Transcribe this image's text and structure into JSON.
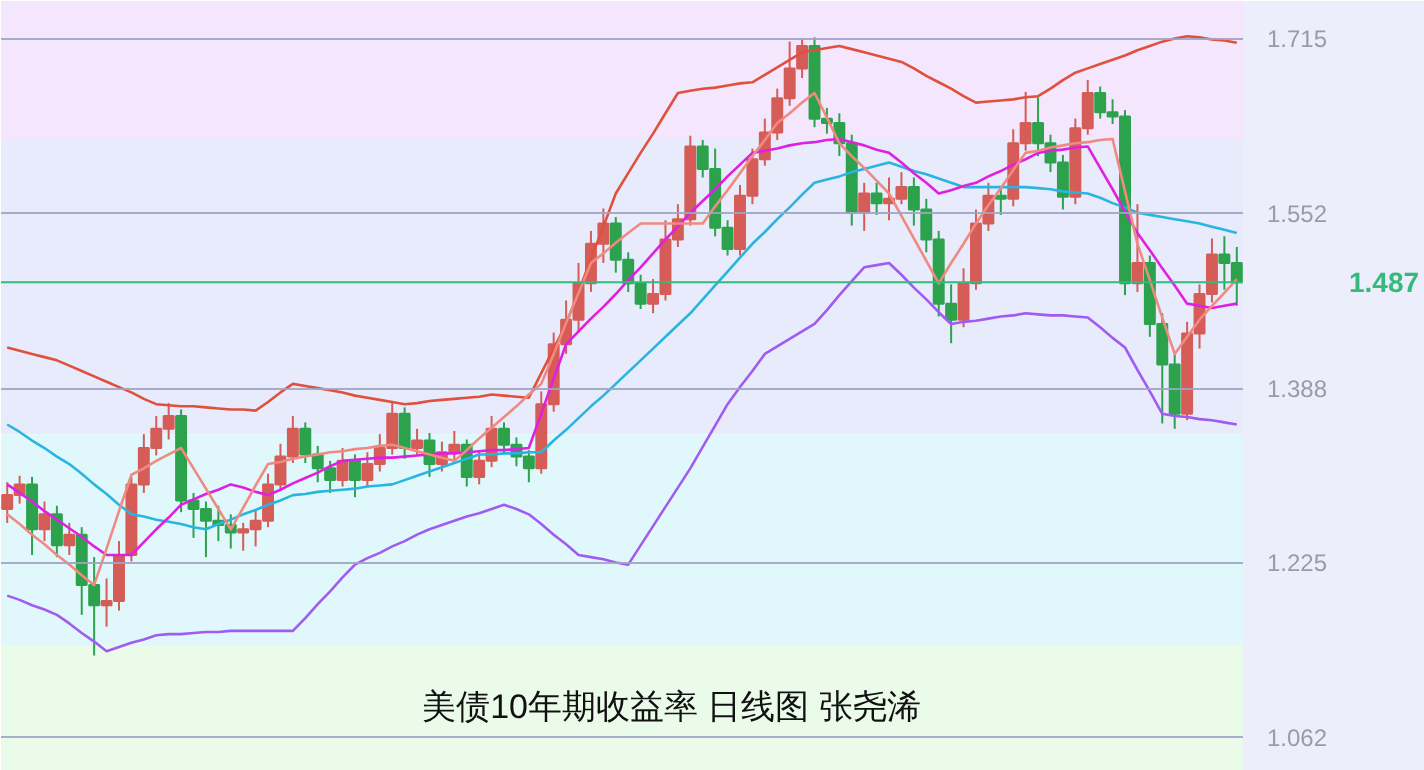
{
  "chart_data": {
    "type": "candlestick",
    "title": "美债10年期收益率  日线图  张尧浠",
    "categories": [
      null,
      null,
      null,
      null,
      null,
      null,
      null,
      null,
      null,
      null,
      null,
      null,
      null,
      null,
      null,
      null,
      null,
      null,
      null,
      null,
      null,
      null,
      null,
      null,
      null,
      null,
      null,
      null,
      null,
      null,
      null,
      null,
      null,
      null,
      null,
      null,
      null,
      null,
      null,
      null,
      null,
      null,
      null,
      null,
      null,
      null,
      null,
      null,
      null,
      null,
      null,
      null,
      null,
      null,
      null,
      null,
      null,
      null,
      null,
      null,
      null,
      null,
      null,
      null,
      null,
      null,
      null,
      null,
      null,
      null,
      null,
      null,
      null,
      null,
      null,
      null,
      null,
      null,
      null,
      null,
      null,
      null,
      null,
      null,
      null,
      null,
      null,
      null,
      null,
      null,
      null,
      null,
      null,
      null,
      null,
      null,
      null,
      null,
      null,
      null
    ],
    "ohlc": [
      [
        1.275,
        1.3,
        1.262,
        1.288
      ],
      [
        1.288,
        1.306,
        1.28,
        1.298
      ],
      [
        1.298,
        1.305,
        1.232,
        1.256
      ],
      [
        1.256,
        1.282,
        1.245,
        1.27
      ],
      [
        1.27,
        1.278,
        1.23,
        1.241
      ],
      [
        1.241,
        1.262,
        1.232,
        1.251
      ],
      [
        1.251,
        1.258,
        1.176,
        1.204
      ],
      [
        1.204,
        1.23,
        1.138,
        1.185
      ],
      [
        1.185,
        1.21,
        1.165,
        1.189
      ],
      [
        1.189,
        1.245,
        1.18,
        1.232
      ],
      [
        1.232,
        1.305,
        1.226,
        1.298
      ],
      [
        1.298,
        1.345,
        1.29,
        1.332
      ],
      [
        1.332,
        1.362,
        1.325,
        1.35
      ],
      [
        1.35,
        1.374,
        1.34,
        1.362
      ],
      [
        1.362,
        1.368,
        1.272,
        1.283
      ],
      [
        1.283,
        1.29,
        1.248,
        1.275
      ],
      [
        1.275,
        1.282,
        1.23,
        1.264
      ],
      [
        1.264,
        1.278,
        1.245,
        1.26
      ],
      [
        1.26,
        1.27,
        1.238,
        1.253
      ],
      [
        1.253,
        1.262,
        1.236,
        1.256
      ],
      [
        1.256,
        1.275,
        1.24,
        1.264
      ],
      [
        1.264,
        1.308,
        1.258,
        1.298
      ],
      [
        1.298,
        1.336,
        1.292,
        1.324
      ],
      [
        1.324,
        1.362,
        1.318,
        1.35
      ],
      [
        1.35,
        1.356,
        1.318,
        1.326
      ],
      [
        1.326,
        1.334,
        1.3,
        1.313
      ],
      [
        1.313,
        1.32,
        1.29,
        1.302
      ],
      [
        1.302,
        1.332,
        1.296,
        1.32
      ],
      [
        1.32,
        1.326,
        1.286,
        1.302
      ],
      [
        1.302,
        1.328,
        1.296,
        1.317
      ],
      [
        1.317,
        1.345,
        1.31,
        1.332
      ],
      [
        1.332,
        1.376,
        1.326,
        1.364
      ],
      [
        1.364,
        1.37,
        1.322,
        1.332
      ],
      [
        1.332,
        1.35,
        1.325,
        1.339
      ],
      [
        1.339,
        1.346,
        1.305,
        1.317
      ],
      [
        1.317,
        1.338,
        1.31,
        1.328
      ],
      [
        1.328,
        1.348,
        1.318,
        1.335
      ],
      [
        1.335,
        1.34,
        1.296,
        1.305
      ],
      [
        1.305,
        1.33,
        1.298,
        1.32
      ],
      [
        1.32,
        1.362,
        1.314,
        1.35
      ],
      [
        1.35,
        1.356,
        1.326,
        1.335
      ],
      [
        1.335,
        1.342,
        1.315,
        1.324
      ],
      [
        1.324,
        1.33,
        1.3,
        1.313
      ],
      [
        1.313,
        1.385,
        1.308,
        1.373
      ],
      [
        1.373,
        1.44,
        1.366,
        1.429
      ],
      [
        1.429,
        1.47,
        1.42,
        1.452
      ],
      [
        1.452,
        1.505,
        1.44,
        1.486
      ],
      [
        1.486,
        1.535,
        1.478,
        1.523
      ],
      [
        1.523,
        1.556,
        1.505,
        1.542
      ],
      [
        1.542,
        1.548,
        1.496,
        1.508
      ],
      [
        1.508,
        1.515,
        1.478,
        1.486
      ],
      [
        1.486,
        1.494,
        1.462,
        1.467
      ],
      [
        1.467,
        1.49,
        1.458,
        1.476
      ],
      [
        1.476,
        1.545,
        1.47,
        1.527
      ],
      [
        1.527,
        1.56,
        1.52,
        1.546
      ],
      [
        1.546,
        1.624,
        1.54,
        1.614
      ],
      [
        1.614,
        1.62,
        1.585,
        1.593
      ],
      [
        1.593,
        1.612,
        1.53,
        1.538
      ],
      [
        1.538,
        1.545,
        1.512,
        1.518
      ],
      [
        1.518,
        1.578,
        1.512,
        1.568
      ],
      [
        1.568,
        1.612,
        1.56,
        1.602
      ],
      [
        1.602,
        1.64,
        1.596,
        1.627
      ],
      [
        1.627,
        1.668,
        1.62,
        1.659
      ],
      [
        1.659,
        1.712,
        1.652,
        1.687
      ],
      [
        1.687,
        1.715,
        1.678,
        1.708
      ],
      [
        1.708,
        1.716,
        1.632,
        1.64
      ],
      [
        1.64,
        1.65,
        1.626,
        1.636
      ],
      [
        1.636,
        1.645,
        1.605,
        1.617
      ],
      [
        1.617,
        1.625,
        1.54,
        1.552
      ],
      [
        1.552,
        1.58,
        1.535,
        1.57
      ],
      [
        1.57,
        1.58,
        1.55,
        1.561
      ],
      [
        1.561,
        1.585,
        1.545,
        1.565
      ],
      [
        1.565,
        1.59,
        1.56,
        1.576
      ],
      [
        1.576,
        1.585,
        1.54,
        1.555
      ],
      [
        1.555,
        1.565,
        1.515,
        1.527
      ],
      [
        1.527,
        1.535,
        1.455,
        1.467
      ],
      [
        1.467,
        1.485,
        1.43,
        1.452
      ],
      [
        1.452,
        1.5,
        1.445,
        1.486
      ],
      [
        1.486,
        1.555,
        1.48,
        1.542
      ],
      [
        1.542,
        1.58,
        1.535,
        1.568
      ],
      [
        1.568,
        1.575,
        1.55,
        1.565
      ],
      [
        1.565,
        1.63,
        1.558,
        1.617
      ],
      [
        1.617,
        1.665,
        1.61,
        1.636
      ],
      [
        1.636,
        1.66,
        1.605,
        1.617
      ],
      [
        1.617,
        1.625,
        1.59,
        1.599
      ],
      [
        1.599,
        1.606,
        1.555,
        1.567
      ],
      [
        1.567,
        1.64,
        1.56,
        1.631
      ],
      [
        1.631,
        1.676,
        1.625,
        1.664
      ],
      [
        1.664,
        1.67,
        1.64,
        1.646
      ],
      [
        1.646,
        1.658,
        1.635,
        1.642
      ],
      [
        1.642,
        1.648,
        1.475,
        1.486
      ],
      [
        1.486,
        1.56,
        1.478,
        1.505
      ],
      [
        1.505,
        1.512,
        1.436,
        1.448
      ],
      [
        1.448,
        1.458,
        1.355,
        1.41
      ],
      [
        1.41,
        1.42,
        1.35,
        1.364
      ],
      [
        1.364,
        1.45,
        1.358,
        1.439
      ],
      [
        1.439,
        1.485,
        1.425,
        1.476
      ],
      [
        1.476,
        1.528,
        1.468,
        1.513
      ],
      [
        1.513,
        1.53,
        1.48,
        1.505
      ],
      [
        1.505,
        1.52,
        1.465,
        1.487
      ]
    ],
    "colors": [
      "#d55c57",
      "#d55c57",
      "#2ca24c",
      "#d55c57",
      "#2ca24c",
      "#d55c57",
      "#2ca24c",
      "#2ca24c",
      "#d55c57",
      "#d55c57",
      "#d55c57",
      "#d55c57",
      "#d55c57",
      "#d55c57",
      "#2ca24c",
      "#2ca24c",
      "#2ca24c",
      "#2ca24c",
      "#2ca24c",
      "#d55c57",
      "#d55c57",
      "#d55c57",
      "#d55c57",
      "#d55c57",
      "#2ca24c",
      "#2ca24c",
      "#2ca24c",
      "#d55c57",
      "#2ca24c",
      "#d55c57",
      "#d55c57",
      "#d55c57",
      "#2ca24c",
      "#d55c57",
      "#2ca24c",
      "#d55c57",
      "#d55c57",
      "#2ca24c",
      "#d55c57",
      "#d55c57",
      "#2ca24c",
      "#2ca24c",
      "#2ca24c",
      "#d55c57",
      "#d55c57",
      "#d55c57",
      "#d55c57",
      "#d55c57",
      "#d55c57",
      "#2ca24c",
      "#2ca24c",
      "#2ca24c",
      "#d55c57",
      "#d55c57",
      "#d55c57",
      "#d55c57",
      "#2ca24c",
      "#2ca24c",
      "#2ca24c",
      "#d55c57",
      "#d55c57",
      "#d55c57",
      "#d55c57",
      "#d55c57",
      "#d55c57",
      "#2ca24c",
      "#2ca24c",
      "#2ca24c",
      "#2ca24c",
      "#d55c57",
      "#2ca24c",
      "#d55c57",
      "#d55c57",
      "#2ca24c",
      "#2ca24c",
      "#2ca24c",
      "#2ca24c",
      "#d55c57",
      "#d55c57",
      "#d55c57",
      "#2ca24c",
      "#d55c57",
      "#d55c57",
      "#2ca24c",
      "#2ca24c",
      "#2ca24c",
      "#d55c57",
      "#d55c57",
      "#2ca24c",
      "#2ca24c",
      "#2ca24c",
      "#d55c57",
      "#2ca24c",
      "#2ca24c",
      "#2ca24c",
      "#d55c57",
      "#d55c57",
      "#d55c57",
      "#2ca24c",
      "#2ca24c"
    ],
    "series": [
      {
        "type": "line",
        "color": "#e0503c",
        "values": [
          1.426,
          1.423,
          1.42,
          1.417,
          1.414,
          1.409,
          1.404,
          1.399,
          1.394,
          1.389,
          1.384,
          1.378,
          1.373,
          1.372,
          1.371,
          1.371,
          1.37,
          1.369,
          1.368,
          1.368,
          1.367,
          1.375,
          1.384,
          1.392,
          1.39,
          1.388,
          1.386,
          1.384,
          1.381,
          1.379,
          1.377,
          1.375,
          1.373,
          1.374,
          1.376,
          1.377,
          1.378,
          1.379,
          1.38,
          1.382,
          1.381,
          1.38,
          1.379,
          1.402,
          1.425,
          1.448,
          1.478,
          1.509,
          1.539,
          1.57,
          1.589,
          1.608,
          1.626,
          1.645,
          1.664,
          1.666,
          1.668,
          1.669,
          1.671,
          1.673,
          1.674,
          1.681,
          1.688,
          1.695,
          1.702,
          1.704,
          1.706,
          1.708,
          1.705,
          1.702,
          1.699,
          1.696,
          1.693,
          1.687,
          1.68,
          1.674,
          1.668,
          1.661,
          1.655,
          1.656,
          1.657,
          1.658,
          1.66,
          1.661,
          1.668,
          1.676,
          1.683,
          1.687,
          1.691,
          1.695,
          1.699,
          1.704,
          1.708,
          1.712,
          1.715,
          1.717,
          1.716,
          1.714,
          1.713,
          1.711
        ]
      },
      {
        "type": "line",
        "color": "#a05cf0",
        "values": [
          1.194,
          1.19,
          1.185,
          1.181,
          1.176,
          1.168,
          1.159,
          1.151,
          1.142,
          1.146,
          1.15,
          1.153,
          1.157,
          1.158,
          1.158,
          1.159,
          1.16,
          1.16,
          1.161,
          1.161,
          1.161,
          1.161,
          1.161,
          1.161,
          1.173,
          1.186,
          1.198,
          1.211,
          1.223,
          1.229,
          1.234,
          1.24,
          1.245,
          1.251,
          1.256,
          1.26,
          1.264,
          1.268,
          1.271,
          1.275,
          1.279,
          1.275,
          1.27,
          1.261,
          1.251,
          1.242,
          1.232,
          1.23,
          1.228,
          1.225,
          1.223,
          1.241,
          1.259,
          1.277,
          1.295,
          1.313,
          1.333,
          1.353,
          1.373,
          1.389,
          1.404,
          1.42,
          1.427,
          1.434,
          1.441,
          1.448,
          1.461,
          1.475,
          1.488,
          1.501,
          1.503,
          1.505,
          1.494,
          1.482,
          1.471,
          1.459,
          1.448,
          1.45,
          1.451,
          1.453,
          1.455,
          1.456,
          1.458,
          1.457,
          1.456,
          1.456,
          1.455,
          1.454,
          1.445,
          1.435,
          1.426,
          1.405,
          1.385,
          1.364,
          1.362,
          1.361,
          1.359,
          1.358,
          1.356,
          1.354
        ]
      },
      {
        "type": "line",
        "color": "#2ab4e0",
        "values": [
          1.354,
          1.347,
          1.339,
          1.332,
          1.324,
          1.317,
          1.308,
          1.298,
          1.289,
          1.279,
          1.27,
          1.268,
          1.265,
          1.263,
          1.261,
          1.258,
          1.256,
          1.261,
          1.265,
          1.27,
          1.274,
          1.279,
          1.283,
          1.288,
          1.289,
          1.291,
          1.292,
          1.293,
          1.294,
          1.296,
          1.297,
          1.298,
          1.302,
          1.306,
          1.31,
          1.314,
          1.318,
          1.322,
          1.326,
          1.326,
          1.327,
          1.327,
          1.328,
          1.328,
          1.339,
          1.349,
          1.36,
          1.371,
          1.381,
          1.392,
          1.403,
          1.414,
          1.425,
          1.436,
          1.447,
          1.458,
          1.471,
          1.484,
          1.497,
          1.51,
          1.523,
          1.534,
          1.546,
          1.557,
          1.569,
          1.58,
          1.583,
          1.586,
          1.59,
          1.593,
          1.596,
          1.599,
          1.595,
          1.591,
          1.588,
          1.584,
          1.58,
          1.576,
          1.576,
          1.576,
          1.576,
          1.576,
          1.576,
          1.575,
          1.574,
          1.572,
          1.571,
          1.57,
          1.566,
          1.561,
          1.557,
          1.552,
          1.55,
          1.548,
          1.546,
          1.544,
          1.542,
          1.539,
          1.536,
          1.533
        ]
      },
      {
        "type": "line",
        "color": "#e020e0",
        "values": [
          1.298,
          1.29,
          1.282,
          1.273,
          1.265,
          1.257,
          1.249,
          1.24,
          1.232,
          1.232,
          1.232,
          1.244,
          1.256,
          1.267,
          1.279,
          1.284,
          1.289,
          1.293,
          1.298,
          1.295,
          1.291,
          1.288,
          1.293,
          1.299,
          1.304,
          1.309,
          1.315,
          1.32,
          1.321,
          1.322,
          1.323,
          1.323,
          1.324,
          1.325,
          1.326,
          1.327,
          1.327,
          1.328,
          1.329,
          1.33,
          1.33,
          1.331,
          1.332,
          1.364,
          1.397,
          1.429,
          1.441,
          1.453,
          1.464,
          1.476,
          1.489,
          1.501,
          1.514,
          1.527,
          1.539,
          1.552,
          1.563,
          1.574,
          1.586,
          1.597,
          1.608,
          1.61,
          1.612,
          1.615,
          1.617,
          1.618,
          1.62,
          1.621,
          1.618,
          1.615,
          1.611,
          1.608,
          1.599,
          1.589,
          1.58,
          1.57,
          1.573,
          1.577,
          1.58,
          1.586,
          1.591,
          1.597,
          1.602,
          1.608,
          1.61,
          1.611,
          1.613,
          1.614,
          1.594,
          1.574,
          1.553,
          1.533,
          1.517,
          1.5,
          1.484,
          1.467,
          1.465,
          1.463,
          1.465,
          1.467
        ]
      },
      {
        "type": "line",
        "color": "#f08a80",
        "values": [
          1.27,
          1.261,
          1.251,
          1.242,
          1.232,
          1.223,
          1.213,
          1.204,
          1.238,
          1.273,
          1.307,
          1.313,
          1.32,
          1.326,
          1.332,
          1.313,
          1.294,
          1.275,
          1.256,
          1.276,
          1.297,
          1.317,
          1.319,
          1.322,
          1.324,
          1.326,
          1.328,
          1.329,
          1.331,
          1.332,
          1.334,
          1.335,
          1.332,
          1.329,
          1.326,
          1.323,
          1.32,
          1.33,
          1.341,
          1.351,
          1.361,
          1.371,
          1.382,
          1.392,
          1.42,
          1.449,
          1.477,
          1.505,
          1.514,
          1.524,
          1.533,
          1.542,
          1.542,
          1.542,
          1.542,
          1.542,
          1.542,
          1.558,
          1.573,
          1.589,
          1.605,
          1.62,
          1.636,
          1.645,
          1.655,
          1.664,
          1.641,
          1.617,
          1.605,
          1.594,
          1.582,
          1.57,
          1.549,
          1.528,
          1.507,
          1.486,
          1.505,
          1.523,
          1.542,
          1.559,
          1.575,
          1.592,
          1.608,
          1.61,
          1.613,
          1.615,
          1.617,
          1.618,
          1.62,
          1.621,
          1.572,
          1.523,
          1.489,
          1.454,
          1.42,
          1.436,
          1.452,
          1.465,
          1.477,
          1.49
        ]
      }
    ],
    "ylim": [
      1.03,
      1.75
    ],
    "yticks": [
      1.715,
      1.552,
      1.388,
      1.225,
      1.062
    ],
    "grid": "y",
    "ref_lines": [
      {
        "axis": "y",
        "value": 1.487,
        "label": "1.487",
        "color": "#36b97c"
      }
    ],
    "bands": [
      {
        "axis": "y",
        "from": 1.621,
        "to": 1.75,
        "color": "#f4e6fc"
      },
      {
        "axis": "y",
        "from": 1.345,
        "to": 1.621,
        "color": "#e7ebfc"
      },
      {
        "axis": "y",
        "from": 1.147,
        "to": 1.345,
        "color": "#e0f8fc"
      },
      {
        "axis": "y",
        "from": 1.03,
        "to": 1.147,
        "color": "#ebfbe9"
      }
    ]
  }
}
